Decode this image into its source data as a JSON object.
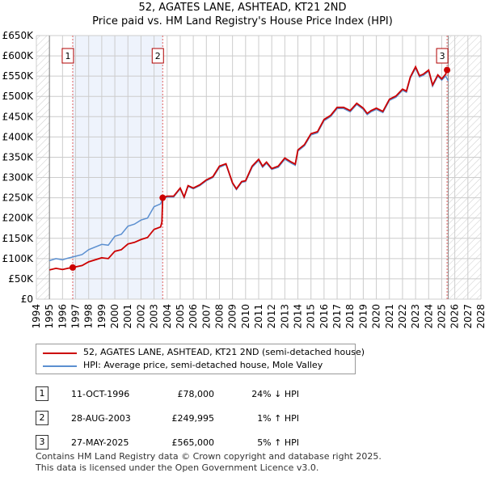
{
  "chart_data": {
    "type": "line",
    "title": "52, AGATES LANE, ASHTEAD, KT21 2ND",
    "subtitle": "Price paid vs. HM Land Registry's House Price Index (HPI)",
    "xlim": [
      1994,
      2028
    ],
    "ylim": [
      0,
      650000
    ],
    "x_ticks": [
      "1994",
      "1995",
      "1996",
      "1997",
      "1998",
      "1999",
      "2000",
      "2001",
      "2002",
      "2003",
      "2004",
      "2005",
      "2006",
      "2007",
      "2008",
      "2009",
      "2010",
      "2011",
      "2012",
      "2013",
      "2014",
      "2015",
      "2016",
      "2017",
      "2018",
      "2019",
      "2020",
      "2021",
      "2022",
      "2023",
      "2024",
      "2025",
      "2026",
      "2027",
      "2028"
    ],
    "y_ticks": [
      "£0",
      "£50K",
      "£100K",
      "£150K",
      "£200K",
      "£250K",
      "£300K",
      "£350K",
      "£400K",
      "£450K",
      "£500K",
      "£550K",
      "£600K",
      "£650K"
    ],
    "grid": true,
    "series": [
      {
        "name": "52, AGATES LANE, ASHTEAD, KT21 2ND (semi-detached house)",
        "color": "#cc0000",
        "x": [
          1995,
          1995.5,
          1996,
          1996.4,
          1996.78,
          1997.5,
          1998,
          1999,
          1999.5,
          2000,
          2000.5,
          2001,
          2001.5,
          2002,
          2002.5,
          2003,
          2003.5,
          2003.6,
          2003.66,
          2004,
          2004.5,
          2005,
          2005.3,
          2005.6,
          2006,
          2006.5,
          2007,
          2007.5,
          2008,
          2008.5,
          2009,
          2009.3,
          2009.7,
          2010,
          2010.5,
          2011,
          2011.3,
          2011.6,
          2012,
          2012.5,
          2013,
          2013.5,
          2013.8,
          2014,
          2014.5,
          2015,
          2015.5,
          2016,
          2016.5,
          2017,
          2017.5,
          2018,
          2018.5,
          2019,
          2019.3,
          2019.6,
          2020,
          2020.5,
          2021,
          2021.5,
          2022,
          2022.3,
          2022.6,
          2023,
          2023.3,
          2023.6,
          2024,
          2024.3,
          2024.7,
          2025,
          2025.3,
          2025.41
        ],
        "y": [
          72000,
          76000,
          73000,
          76000,
          78000,
          83000,
          92000,
          102000,
          100000,
          118000,
          122000,
          136000,
          140000,
          147000,
          152000,
          172000,
          178000,
          190000,
          249995,
          254000,
          254000,
          274000,
          252000,
          280000,
          274000,
          282000,
          294000,
          302000,
          328000,
          334000,
          287000,
          272000,
          290000,
          292000,
          328000,
          345000,
          328000,
          338000,
          322000,
          328000,
          348000,
          338000,
          333000,
          368000,
          381000,
          408000,
          413000,
          443000,
          453000,
          473000,
          473000,
          465000,
          483000,
          471000,
          458000,
          465000,
          471000,
          463000,
          493000,
          501000,
          518000,
          513000,
          548000,
          573000,
          551000,
          555000,
          565000,
          528000,
          553000,
          543000,
          555000,
          565000
        ]
      },
      {
        "name": "HPI: Average price, semi-detached house, Mole Valley",
        "color": "#5b8fd0",
        "x": [
          1995,
          1995.5,
          1996,
          1996.4,
          1996.78,
          1997.5,
          1998,
          1999,
          1999.5,
          2000,
          2000.5,
          2001,
          2001.5,
          2002,
          2002.5,
          2003,
          2003.5,
          2003.66,
          2004,
          2004.5,
          2005,
          2005.3,
          2005.6,
          2006,
          2006.5,
          2007,
          2007.5,
          2008,
          2008.5,
          2009,
          2009.3,
          2009.7,
          2010,
          2010.5,
          2011,
          2011.3,
          2011.6,
          2012,
          2012.5,
          2013,
          2013.5,
          2013.8,
          2014,
          2014.5,
          2015,
          2015.5,
          2016,
          2016.5,
          2017,
          2017.5,
          2018,
          2018.5,
          2019,
          2019.3,
          2019.6,
          2020,
          2020.5,
          2021,
          2021.5,
          2022,
          2022.3,
          2022.6,
          2023,
          2023.3,
          2023.6,
          2024,
          2024.3,
          2024.7,
          2025,
          2025.3,
          2025.5
        ],
        "y": [
          95000,
          100000,
          97000,
          101000,
          104000,
          110000,
          122000,
          135000,
          133000,
          155000,
          160000,
          180000,
          185000,
          195000,
          200000,
          228000,
          235000,
          248000,
          252000,
          252000,
          272000,
          250000,
          278000,
          272000,
          280000,
          292000,
          300000,
          325000,
          332000,
          285000,
          270000,
          288000,
          290000,
          325000,
          342000,
          325000,
          335000,
          320000,
          325000,
          345000,
          335000,
          330000,
          365000,
          378000,
          405000,
          410000,
          440000,
          450000,
          470000,
          470000,
          462000,
          480000,
          468000,
          455000,
          462000,
          468000,
          460000,
          490000,
          498000,
          515000,
          510000,
          545000,
          570000,
          548000,
          552000,
          562000,
          525000,
          550000,
          540000,
          550000,
          538000
        ]
      }
    ],
    "sales": [
      {
        "label": "1",
        "date": "11-OCT-1996",
        "x": 1996.78,
        "price": "£78,000",
        "value": 78000,
        "hpi": "24% ↓ HPI"
      },
      {
        "label": "2",
        "date": "28-AUG-2003",
        "x": 2003.66,
        "price": "£249,995",
        "value": 249995,
        "hpi": "1% ↑ HPI"
      },
      {
        "label": "3",
        "date": "27-MAY-2025",
        "x": 2025.41,
        "price": "£565,000",
        "value": 565000,
        "hpi": "5% ↑ HPI"
      }
    ],
    "data_end": 2025.5
  },
  "footer": {
    "line1": "Contains HM Land Registry data © Crown copyright and database right 2025.",
    "line2": "This data is licensed under the Open Government Licence v3.0."
  }
}
